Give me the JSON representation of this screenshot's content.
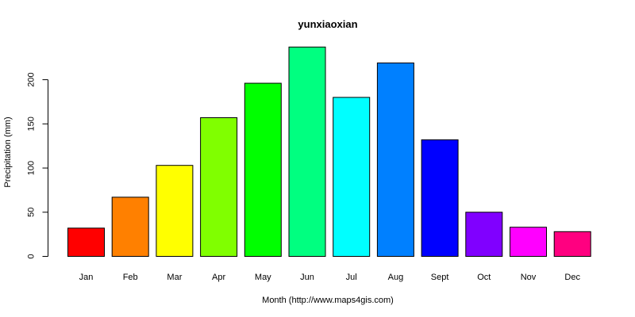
{
  "chart_data": {
    "type": "bar",
    "title": "yunxiaoxian",
    "xlabel": "Month (http://www.maps4gis.com)",
    "ylabel": "Precipitation (mm)",
    "categories": [
      "Jan",
      "Feb",
      "Mar",
      "Apr",
      "May",
      "Jun",
      "Jul",
      "Aug",
      "Sept",
      "Oct",
      "Nov",
      "Dec"
    ],
    "values": [
      32,
      67,
      103,
      157,
      196,
      237,
      180,
      219,
      132,
      50,
      33,
      28
    ],
    "colors": [
      "#ff0000",
      "#ff8000",
      "#ffff00",
      "#80ff00",
      "#00ff00",
      "#00ff80",
      "#00ffff",
      "#0080ff",
      "#0000ff",
      "#8000ff",
      "#ff00ff",
      "#ff0080"
    ],
    "ylim": [
      0,
      237
    ],
    "yticks": [
      0,
      50,
      100,
      150,
      200
    ],
    "grid": false,
    "legend": "none"
  }
}
